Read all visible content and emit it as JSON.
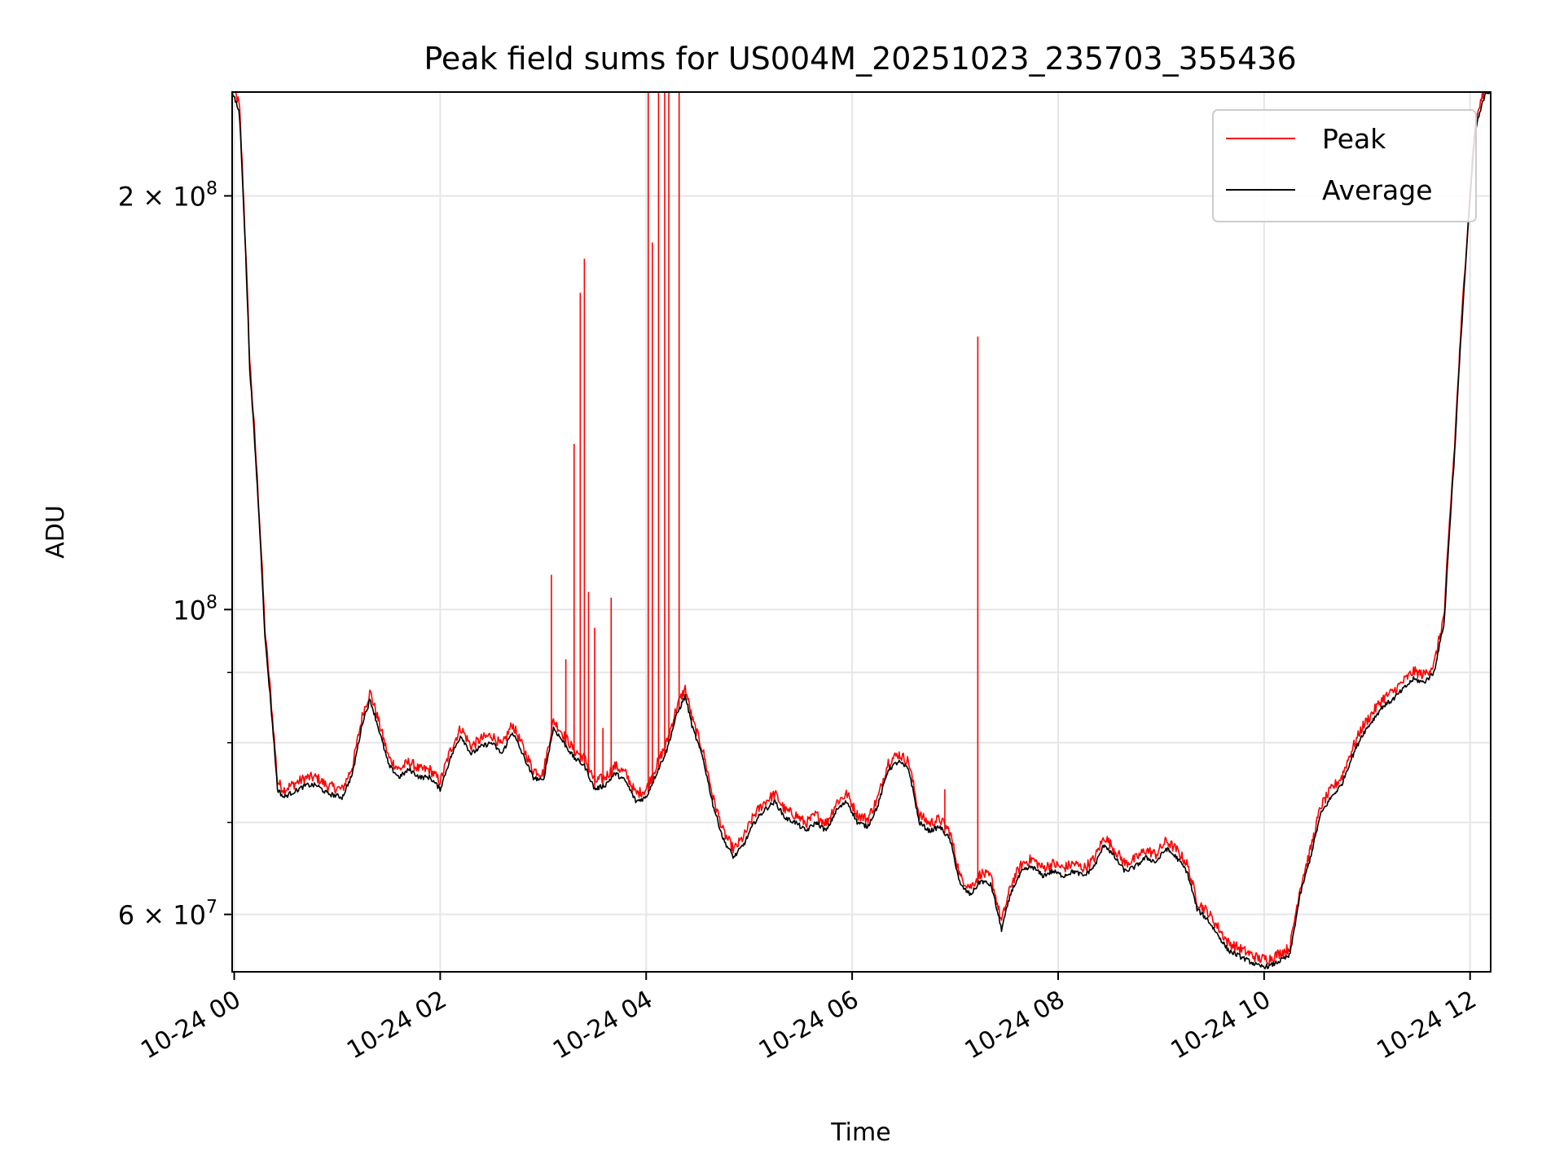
{
  "chart_data": {
    "type": "line",
    "title": "Peak field sums for US004M_20251023_235703_355436",
    "xlabel": "Time",
    "ylabel": "ADU",
    "x_unit": "hours since 10-24 00:00",
    "xlim": [
      -0.02,
      12.2
    ],
    "ylim": [
      54500000.0,
      238000000.0
    ],
    "y_scale": "log",
    "grid": true,
    "legend_position": "top-right",
    "x_ticks": [
      {
        "value": 0,
        "label": "10-24 00"
      },
      {
        "value": 2,
        "label": "10-24 02"
      },
      {
        "value": 4,
        "label": "10-24 04"
      },
      {
        "value": 6,
        "label": "10-24 06"
      },
      {
        "value": 8,
        "label": "10-24 08"
      },
      {
        "value": 10,
        "label": "10-24 10"
      },
      {
        "value": 12,
        "label": "10-24 12"
      }
    ],
    "y_major_ticks": [
      {
        "value": 60000000,
        "mantissa": "6",
        "exponent": "7"
      },
      {
        "value": 100000000,
        "mantissa": "",
        "exponent": "8"
      },
      {
        "value": 200000000,
        "mantissa": "2",
        "exponent": "8"
      }
    ],
    "y_minor_ticks": [
      70000000,
      80000000,
      90000000
    ],
    "series": [
      {
        "name": "Peak",
        "color": "#ff0000",
        "spikes": [
          {
            "x": 3.08,
            "y": 106000000
          },
          {
            "x": 3.22,
            "y": 92000000
          },
          {
            "x": 3.3,
            "y": 132000000
          },
          {
            "x": 3.36,
            "y": 170000000
          },
          {
            "x": 3.4,
            "y": 180000000
          },
          {
            "x": 3.44,
            "y": 103000000
          },
          {
            "x": 3.5,
            "y": 97000000
          },
          {
            "x": 3.58,
            "y": 82000000
          },
          {
            "x": 3.66,
            "y": 102000000
          },
          {
            "x": 4.02,
            "y": 238000000
          },
          {
            "x": 4.06,
            "y": 185000000
          },
          {
            "x": 4.12,
            "y": 238000000
          },
          {
            "x": 4.18,
            "y": 238000000
          },
          {
            "x": 4.22,
            "y": 238000000
          },
          {
            "x": 4.32,
            "y": 238000000
          },
          {
            "x": 7.22,
            "y": 158000000
          },
          {
            "x": 6.9,
            "y": 74000000
          }
        ]
      },
      {
        "name": "Average",
        "color": "#000000",
        "x": [
          -0.02,
          0.05,
          0.15,
          0.3,
          0.42,
          0.48,
          0.55,
          0.7,
          0.8,
          0.9,
          1.05,
          1.15,
          1.25,
          1.32,
          1.4,
          1.5,
          1.6,
          1.7,
          1.8,
          1.9,
          2.0,
          2.1,
          2.2,
          2.3,
          2.4,
          2.5,
          2.6,
          2.7,
          2.8,
          2.9,
          3.0,
          3.1,
          3.2,
          3.3,
          3.4,
          3.5,
          3.6,
          3.7,
          3.8,
          3.9,
          4.0,
          4.1,
          4.2,
          4.3,
          4.38,
          4.45,
          4.55,
          4.65,
          4.75,
          4.85,
          4.95,
          5.05,
          5.15,
          5.25,
          5.35,
          5.45,
          5.55,
          5.65,
          5.75,
          5.85,
          5.95,
          6.05,
          6.15,
          6.25,
          6.35,
          6.45,
          6.55,
          6.65,
          6.75,
          6.85,
          6.95,
          7.05,
          7.15,
          7.25,
          7.35,
          7.45,
          7.55,
          7.65,
          7.75,
          7.85,
          7.95,
          8.05,
          8.15,
          8.25,
          8.35,
          8.45,
          8.55,
          8.65,
          8.75,
          8.85,
          8.95,
          9.05,
          9.15,
          9.25,
          9.35,
          9.45,
          9.55,
          9.65,
          9.75,
          9.85,
          9.95,
          10.05,
          10.15,
          10.25,
          10.35,
          10.45,
          10.55,
          10.65,
          10.75,
          10.85,
          10.95,
          11.05,
          11.15,
          11.25,
          11.35,
          11.45,
          11.55,
          11.65,
          11.75,
          11.85,
          11.95,
          12.05,
          12.15,
          12.2
        ],
        "y": [
          238000000,
          230000000,
          150000000,
          95000000,
          74000000,
          73000000,
          73500000,
          74500000,
          74500000,
          73500000,
          73000000,
          76000000,
          83000000,
          86000000,
          82000000,
          77000000,
          75500000,
          76500000,
          75500000,
          75500000,
          74000000,
          78000000,
          81000000,
          78500000,
          79500000,
          80000000,
          78500000,
          81500000,
          78500000,
          75500000,
          75000000,
          82000000,
          80000000,
          78000000,
          77000000,
          74000000,
          74500000,
          76000000,
          75000000,
          72500000,
          73000000,
          76000000,
          79000000,
          84000000,
          86500000,
          82000000,
          78000000,
          72000000,
          68000000,
          66000000,
          67500000,
          70000000,
          71500000,
          72500000,
          70500000,
          70000000,
          69000000,
          70000000,
          69000000,
          71500000,
          72500000,
          70000000,
          69500000,
          72000000,
          76500000,
          77500000,
          76500000,
          70000000,
          69000000,
          69500000,
          68000000,
          63000000,
          62000000,
          63500000,
          63000000,
          58500000,
          62500000,
          64500000,
          65000000,
          64000000,
          64500000,
          64000000,
          64500000,
          64000000,
          65000000,
          67500000,
          66000000,
          64500000,
          65000000,
          66000000,
          65500000,
          67000000,
          66000000,
          64500000,
          60500000,
          59500000,
          58000000,
          56500000,
          56000000,
          55500000,
          55000000,
          55000000,
          55500000,
          56000000,
          62000000,
          66000000,
          71000000,
          73000000,
          74500000,
          78000000,
          81000000,
          83000000,
          85000000,
          86000000,
          87500000,
          89000000,
          88500000,
          90000000,
          98000000,
          130000000,
          175000000,
          223000000,
          238000000,
          238000000
        ]
      }
    ]
  },
  "legend": {
    "items": [
      {
        "label": "Peak",
        "color": "#ff0000"
      },
      {
        "label": "Average",
        "color": "#000000"
      }
    ]
  }
}
